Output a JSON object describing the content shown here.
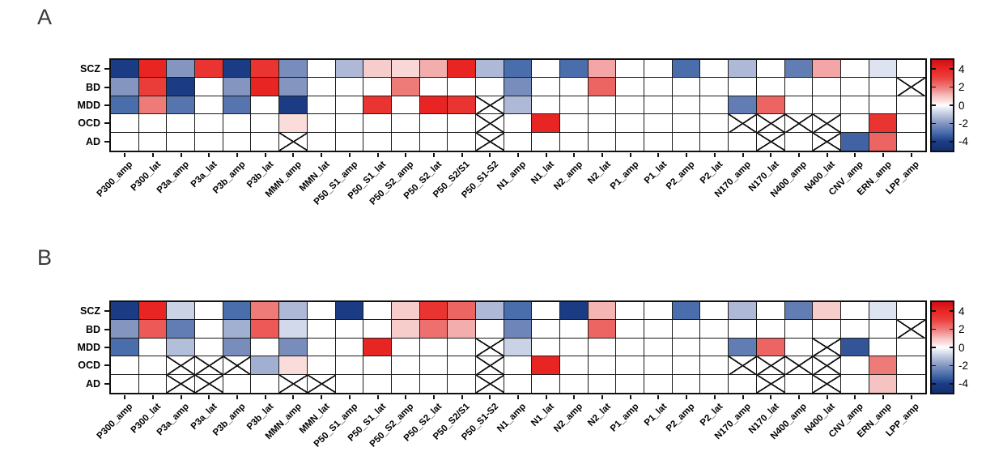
{
  "figure": {
    "panel_a_letter": "A",
    "panel_b_letter": "B",
    "crossed_cell_symbol": "X"
  },
  "colorbar": {
    "tick_labels": [
      "4",
      "2",
      "0",
      "-2",
      "-4"
    ],
    "tick_values": [
      4,
      2,
      0,
      -2,
      -4
    ],
    "vmin": -5,
    "vmax": 5
  },
  "colors": {
    "background": "#ffffff",
    "grid_line": "#1b1b1b",
    "border": "#111111",
    "panel_letter": "#3a3a3a",
    "negative_end": "#1b3c85",
    "positive_end": "#e92524",
    "colormap_stops": [
      [
        -5,
        [
          21,
          47,
          110
        ]
      ],
      [
        -4,
        [
          27,
          60,
          133
        ]
      ],
      [
        -3,
        [
          74,
          109,
          171
        ]
      ],
      [
        -2,
        [
          132,
          149,
          192
        ]
      ],
      [
        -1,
        [
          190,
          201,
          224
        ]
      ],
      [
        -0.5,
        [
          221,
          227,
          240
        ]
      ],
      [
        0,
        [
          255,
          255,
          255
        ]
      ],
      [
        0.5,
        [
          250,
          220,
          219
        ]
      ],
      [
        1,
        [
          245,
          195,
          194
        ]
      ],
      [
        2,
        [
          239,
          123,
          121
        ]
      ],
      [
        3,
        [
          234,
          67,
          64
        ]
      ],
      [
        4,
        [
          233,
          37,
          36
        ]
      ],
      [
        5,
        [
          206,
          15,
          20
        ]
      ]
    ]
  },
  "chart_data": [
    {
      "type": "heatmap",
      "panel_label": "A",
      "rows": [
        "SCZ",
        "BD",
        "MDD",
        "OCD",
        "AD"
      ],
      "columns": [
        "P300_amp",
        "P300_lat",
        "P3a_amp",
        "P3a_lat",
        "P3b_amp",
        "P3b_lat",
        "MMN_amp",
        "MMN_lat",
        "P50_S1_amp",
        "P50_S1_lat",
        "P50_S2_amp",
        "P50_S2_lat",
        "P50_S2/S1",
        "P50_S1-S2",
        "N1_amp",
        "N1_lat",
        "N2_amp",
        "N2_lat",
        "P1_amp",
        "P1_lat",
        "P2_amp",
        "P2_lat",
        "N170_amp",
        "N170_lat",
        "N400_amp",
        "N400_lat",
        "CNV_amp",
        "ERN_amp",
        "LPP_amp"
      ],
      "values": [
        [
          -4,
          4,
          -2,
          3.5,
          -4,
          3.5,
          -2.2,
          0,
          -1.3,
          0.8,
          0.6,
          1.3,
          4,
          -1.3,
          -3,
          0,
          -3,
          1.4,
          0,
          0,
          -3,
          0,
          -1.3,
          0,
          -2.6,
          1.4,
          0,
          -0.5,
          0
        ],
        [
          -2,
          3.2,
          -4,
          0,
          -2,
          4,
          -2,
          0,
          0,
          0,
          2,
          0,
          0,
          0,
          -2.2,
          0,
          0,
          2.4,
          0,
          0,
          0,
          0,
          0,
          0,
          0,
          0,
          0,
          0,
          "X"
        ],
        [
          -3,
          2,
          -2.8,
          0,
          -2.8,
          0,
          -4,
          0,
          0,
          3.5,
          0,
          4,
          3.5,
          "X",
          -1.3,
          0,
          0,
          0,
          0,
          0,
          0,
          0,
          -2.6,
          2.4,
          0,
          0,
          0,
          0,
          0
        ],
        [
          0,
          0,
          0,
          0,
          0,
          0,
          0.5,
          0,
          0,
          0,
          0,
          0,
          0,
          "X",
          0,
          4,
          0,
          0,
          0,
          0,
          0,
          0,
          "X",
          "X",
          "X",
          "X",
          0,
          3.5,
          0
        ],
        [
          0,
          0,
          0,
          0,
          0,
          0,
          "X",
          0,
          0,
          0,
          0,
          0,
          0,
          "X",
          0,
          0,
          0,
          0,
          0,
          0,
          0,
          0,
          0,
          "X",
          0,
          "X",
          -3.2,
          2.4,
          0
        ]
      ]
    },
    {
      "type": "heatmap",
      "panel_label": "B",
      "rows": [
        "SCZ",
        "BD",
        "MDD",
        "OCD",
        "AD"
      ],
      "columns": [
        "P300_amp",
        "P300_lat",
        "P3a_amp",
        "P3a_lat",
        "P3b_amp",
        "P3b_lat",
        "MMN_amp",
        "MMN_lat",
        "P50_S1_amp",
        "P50_S1_lat",
        "P50_S2_amp",
        "P50_S2_lat",
        "P50_S2/S1",
        "P50_S1-S2",
        "N1_amp",
        "N1_lat",
        "N2_amp",
        "N2_lat",
        "P1_amp",
        "P1_lat",
        "P2_amp",
        "P2_lat",
        "N170_amp",
        "N170_lat",
        "N400_amp",
        "N400_lat",
        "CNV_amp",
        "ERN_amp",
        "LPP_amp"
      ],
      "values": [
        [
          -4,
          4,
          -0.8,
          0,
          -3,
          2,
          -1.3,
          0,
          -4,
          0,
          0.8,
          3.5,
          2.4,
          -1.3,
          -3,
          0,
          -4,
          1.2,
          0,
          0,
          -3,
          0,
          -1.3,
          0,
          -2.6,
          0.8,
          0,
          -0.5,
          0
        ],
        [
          -2,
          2.6,
          -2.6,
          0,
          -1.5,
          2.6,
          -0.7,
          0,
          0,
          0,
          0.8,
          2.2,
          1.3,
          0,
          -2.4,
          0,
          0,
          2.4,
          0,
          0,
          0,
          0,
          0,
          0,
          0,
          0,
          0,
          0,
          "X"
        ],
        [
          -3,
          0,
          -1.2,
          0,
          -2.2,
          0,
          -2.2,
          0,
          0,
          4,
          0,
          0,
          0,
          "X",
          -0.8,
          0,
          0,
          0,
          0,
          0,
          0,
          0,
          -2.6,
          2.4,
          0,
          "X",
          -3.5,
          0,
          0
        ],
        [
          0,
          0,
          "X",
          "X",
          "X",
          -1.5,
          0.5,
          0,
          0,
          0,
          0,
          0,
          0,
          "X",
          0,
          4,
          0,
          0,
          0,
          0,
          0,
          0,
          "X",
          "X",
          "X",
          "X",
          0,
          2,
          0
        ],
        [
          0,
          0,
          "X",
          "X",
          0,
          0,
          "X",
          "X",
          0,
          0,
          0,
          0,
          0,
          "X",
          0,
          0,
          0,
          0,
          0,
          0,
          0,
          0,
          0,
          "X",
          0,
          "X",
          0,
          1,
          0
        ]
      ]
    }
  ]
}
